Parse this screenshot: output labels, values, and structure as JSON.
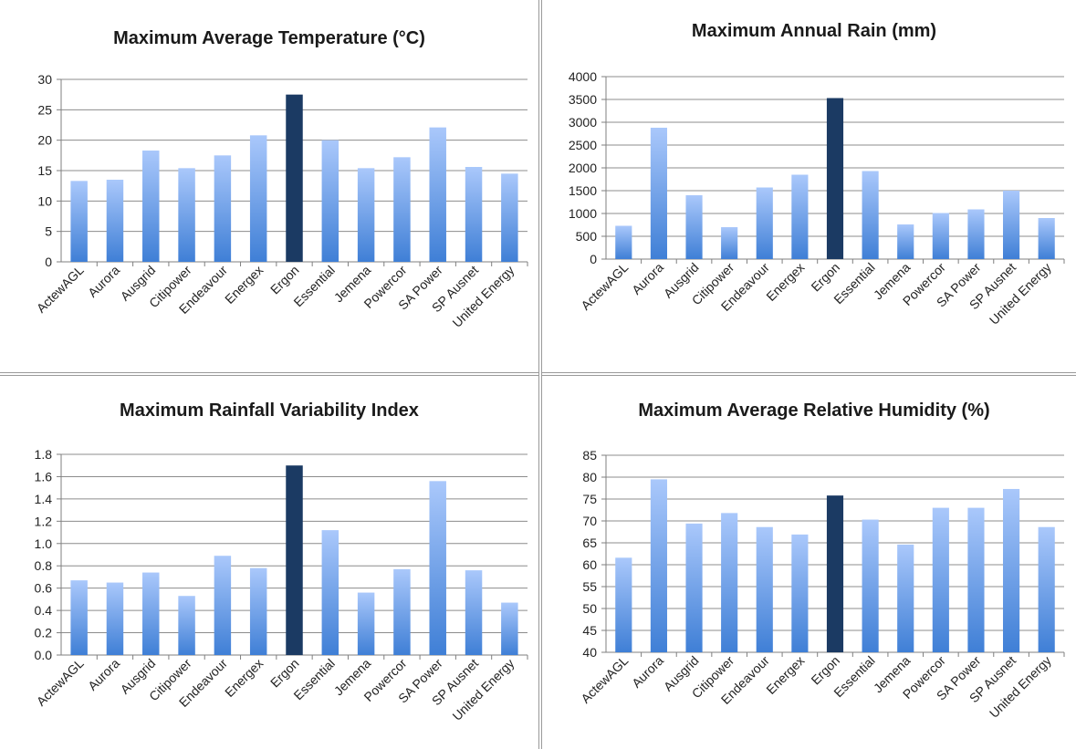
{
  "colors": {
    "bar_top": "#aac8fb",
    "bar_bottom": "#3f7fd6",
    "highlight": "#1b3a63",
    "grid": "#8c8c8c",
    "axis": "#7f7f7f"
  },
  "chart_data": [
    {
      "type": "bar",
      "title": "Maximum Average Temperature (°C)",
      "categories": [
        "ActewAGL",
        "Aurora",
        "Ausgrid",
        "Citipower",
        "Endeavour",
        "Energex",
        "Ergon",
        "Essential",
        "Jemena",
        "Powercor",
        "SA Power",
        "SP Ausnet",
        "United Energy"
      ],
      "values": [
        13.3,
        13.5,
        18.3,
        15.4,
        17.5,
        20.8,
        27.5,
        20.0,
        15.4,
        17.2,
        22.1,
        15.6,
        14.5
      ],
      "highlight_index": 6,
      "ylim": [
        0,
        30
      ],
      "yticks": [
        "0",
        "5",
        "10",
        "15",
        "20",
        "25",
        "30"
      ],
      "grid": true,
      "xlabel": "",
      "ylabel": ""
    },
    {
      "type": "bar",
      "title": "Maximum Annual Rain (mm)",
      "categories": [
        "ActewAGL",
        "Aurora",
        "Ausgrid",
        "Citipower",
        "Endeavour",
        "Energex",
        "Ergon",
        "Essential",
        "Jemena",
        "Powercor",
        "SA Power",
        "SP Ausnet",
        "United Energy"
      ],
      "values": [
        730,
        2880,
        1400,
        700,
        1570,
        1850,
        3530,
        1930,
        760,
        1010,
        1090,
        1500,
        900
      ],
      "highlight_index": 6,
      "ylim": [
        0,
        4000
      ],
      "yticks": [
        "0",
        "500",
        "1000",
        "1500",
        "2000",
        "2500",
        "3000",
        "3500",
        "4000"
      ],
      "grid": true,
      "xlabel": "",
      "ylabel": ""
    },
    {
      "type": "bar",
      "title": "Maximum Rainfall Variability Index",
      "categories": [
        "ActewAGL",
        "Aurora",
        "Ausgrid",
        "Citipower",
        "Endeavour",
        "Energex",
        "Ergon",
        "Essential",
        "Jemena",
        "Powercor",
        "SA Power",
        "SP Ausnet",
        "United Energy"
      ],
      "values": [
        0.67,
        0.65,
        0.74,
        0.53,
        0.89,
        0.78,
        1.7,
        1.12,
        0.56,
        0.77,
        1.56,
        0.76,
        0.47
      ],
      "highlight_index": 6,
      "ylim": [
        0,
        1.8
      ],
      "yticks": [
        "0.0",
        "0.2",
        "0.4",
        "0.6",
        "0.8",
        "1.0",
        "1.2",
        "1.4",
        "1.6",
        "1.8"
      ],
      "grid": true,
      "xlabel": "",
      "ylabel": ""
    },
    {
      "type": "bar",
      "title": "Maximum Average Relative Humidity (%)",
      "categories": [
        "ActewAGL",
        "Aurora",
        "Ausgrid",
        "Citipower",
        "Endeavour",
        "Energex",
        "Ergon",
        "Essential",
        "Jemena",
        "Powercor",
        "SA Power",
        "SP Ausnet",
        "United Energy"
      ],
      "values": [
        61.6,
        79.5,
        69.4,
        71.8,
        68.6,
        66.9,
        75.8,
        70.3,
        64.6,
        73.0,
        73.0,
        77.3,
        68.6
      ],
      "highlight_index": 6,
      "ylim": [
        40,
        85
      ],
      "yticks": [
        "40",
        "45",
        "50",
        "55",
        "60",
        "65",
        "70",
        "75",
        "80",
        "85"
      ],
      "grid": true,
      "xlabel": "",
      "ylabel": ""
    }
  ]
}
